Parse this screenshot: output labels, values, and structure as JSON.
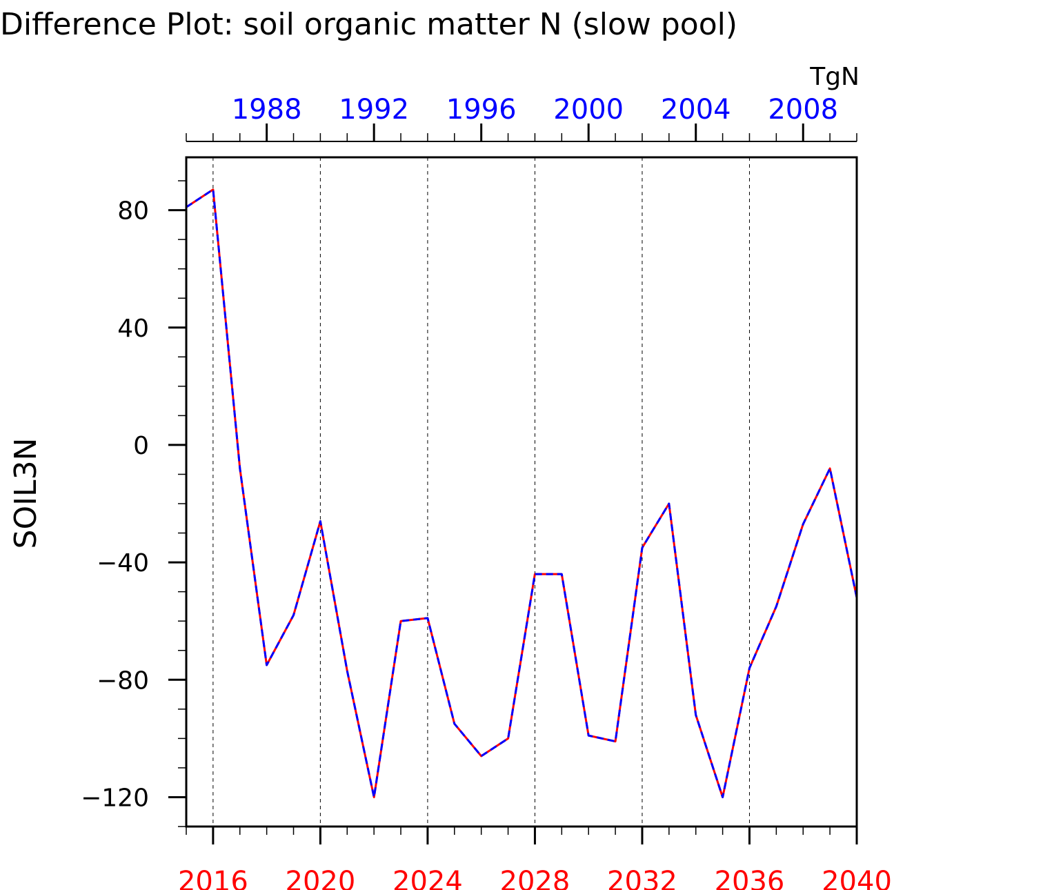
{
  "chart_data": {
    "type": "line",
    "title": "Difference Plot: soil organic matter N (slow pool)",
    "units": "TgN",
    "ylabel": "SOIL3N",
    "xlabel": "",
    "ylim": [
      -130,
      98
    ],
    "grid": "vertical dashed lines at bottom-axis major ticks",
    "x": [
      2015,
      2016,
      2017,
      2018,
      2019,
      2020,
      2021,
      2022,
      2023,
      2024,
      2025,
      2026,
      2027,
      2028,
      2029,
      2030,
      2031,
      2032,
      2033,
      2034,
      2035,
      2036,
      2037,
      2038,
      2039,
      2040
    ],
    "series": [
      {
        "color": "#ff0000",
        "style": "solid",
        "values": [
          81,
          87,
          -8,
          -75,
          -58,
          -26,
          -77,
          -120,
          -60,
          -59,
          -95,
          -106,
          -100,
          -44,
          -44,
          -99,
          -101,
          -35,
          -20,
          -92,
          -120,
          -76,
          -55,
          -27,
          -8,
          -52
        ]
      },
      {
        "color": "#0000ff",
        "style": "dashed",
        "values": [
          81,
          87,
          -8,
          -75,
          -58,
          -26,
          -77,
          -120,
          -60,
          -59,
          -95,
          -106,
          -100,
          -44,
          -44,
          -99,
          -101,
          -35,
          -20,
          -92,
          -120,
          -76,
          -55,
          -27,
          -8,
          -52
        ]
      }
    ],
    "x_bottom": {
      "range": [
        2015,
        2040
      ],
      "ticks": [
        "2016",
        "2020",
        "2024",
        "2028",
        "2032",
        "2036",
        "2040"
      ],
      "color": "#ff0000"
    },
    "x_top": {
      "range": [
        1985,
        2010
      ],
      "ticks": [
        "1988",
        "1992",
        "1996",
        "2000",
        "2004",
        "2008"
      ],
      "color": "#0000ff"
    },
    "y_ticks": [
      "80",
      "40",
      "0",
      "−40",
      "−80",
      "−120"
    ]
  }
}
